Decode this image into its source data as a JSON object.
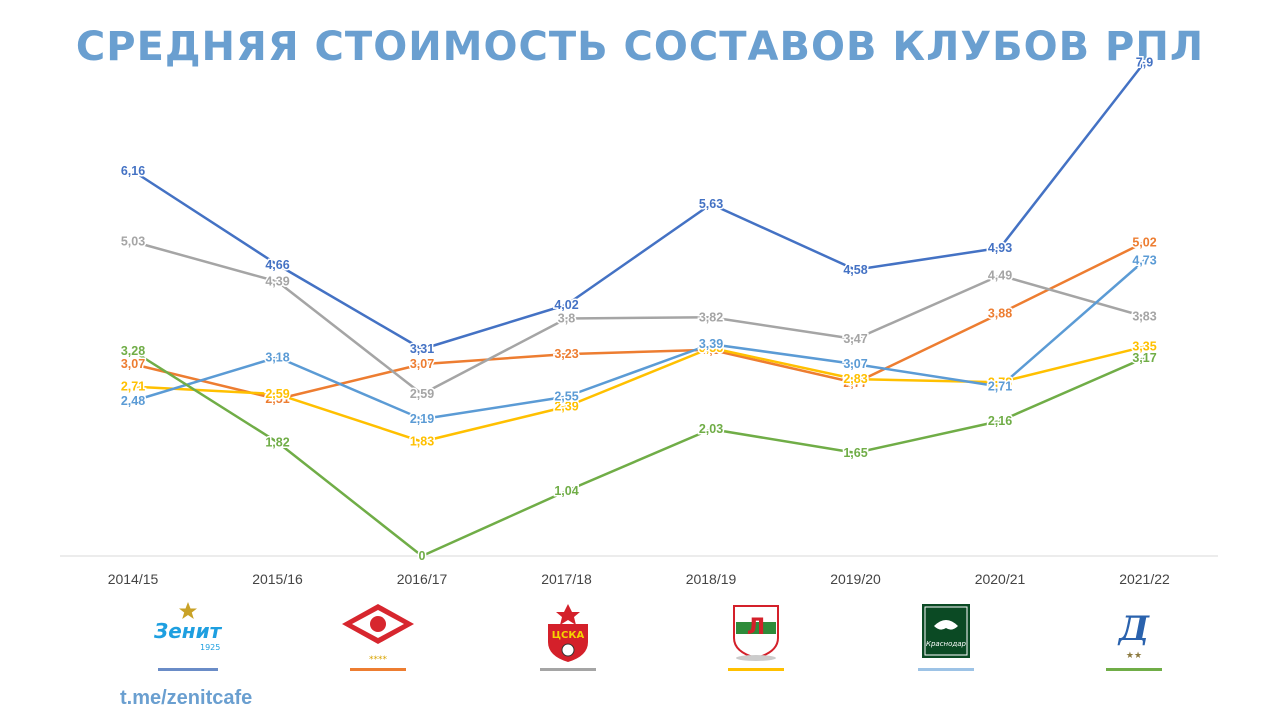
{
  "chart_data": {
    "type": "line",
    "title": "СРЕДНЯЯ СТОИМОСТЬ СОСТАВОВ КЛУБОВ РПЛ",
    "categories": [
      "2014/15",
      "2015/16",
      "2016/17",
      "2017/18",
      "2018/19",
      "2019/20",
      "2020/21",
      "2021/22"
    ],
    "ylim": [
      0,
      8
    ],
    "grid": false,
    "series": [
      {
        "color": "#4472c4",
        "values": [
          6.16,
          4.66,
          3.31,
          4.02,
          5.63,
          4.58,
          4.93,
          7.9
        ],
        "labels": [
          "6,16",
          "4,66",
          "3,31",
          "4,02",
          "5,63",
          "4,58",
          "4,93",
          "7,9"
        ]
      },
      {
        "color": "#ed7d31",
        "values": [
          3.07,
          2.51,
          3.07,
          3.23,
          3.3,
          2.77,
          3.88,
          5.02
        ],
        "labels": [
          "3,07",
          "2,51",
          "3,07",
          "3,23",
          "3,3",
          "2,77",
          "3,88",
          "5,02"
        ]
      },
      {
        "color": "#a5a5a5",
        "values": [
          5.03,
          4.39,
          2.59,
          3.8,
          3.82,
          3.47,
          4.49,
          3.83
        ],
        "labels": [
          "5,03",
          "4,39",
          "2,59",
          "3,8",
          "3,82",
          "3,47",
          "4,49",
          "3,83"
        ]
      },
      {
        "color": "#ffc000",
        "values": [
          2.71,
          2.59,
          1.83,
          2.39,
          3.33,
          2.83,
          2.78,
          3.35
        ],
        "labels": [
          "2,71",
          "2,59",
          "1,83",
          "2,39",
          "3,33",
          "2,83",
          "2,78",
          "3,35"
        ]
      },
      {
        "color": "#5b9bd5",
        "values": [
          2.48,
          3.18,
          2.19,
          2.55,
          3.39,
          3.07,
          2.71,
          4.73
        ],
        "labels": [
          "2,48",
          "3,18",
          "2,19",
          "2,55",
          "3,39",
          "3,07",
          "2,71",
          "4,73"
        ]
      },
      {
        "color": "#70ad47",
        "values": [
          3.28,
          1.82,
          0,
          1.04,
          2.03,
          1.65,
          2.16,
          3.17
        ],
        "labels": [
          "3,28",
          "1,82",
          "0",
          "1,04",
          "2,03",
          "1,65",
          "2,16",
          "3,17"
        ]
      }
    ]
  },
  "legend": [
    {
      "icon": "zenit-logo-icon",
      "logo_text": "Зенит",
      "logo_year": "1925",
      "color": "#4472c4"
    },
    {
      "icon": "spartak-logo-icon",
      "logo_text": "****",
      "color": "#ed7d31"
    },
    {
      "icon": "cska-logo-icon",
      "logo_text": "ЦСКА",
      "color": "#a5a5a5"
    },
    {
      "icon": "lokomotiv-logo-icon",
      "logo_text": "Л",
      "color": "#ffc000"
    },
    {
      "icon": "krasnodar-logo-icon",
      "logo_text": "Краснодар",
      "color": "#5b9bd5"
    },
    {
      "icon": "dynamo-logo-icon",
      "logo_text": "★★",
      "color": "#70ad47"
    }
  ],
  "footer": {
    "link": "t.me/zenitcafe"
  }
}
